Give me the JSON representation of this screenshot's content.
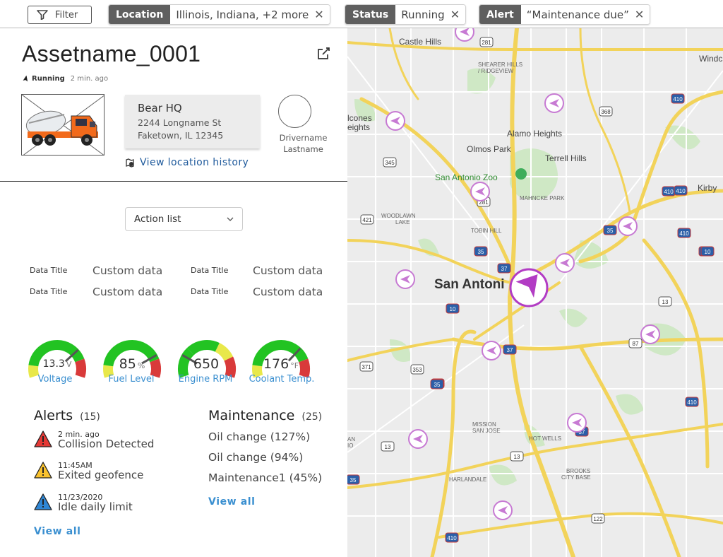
{
  "filters": {
    "filter_label": "Filter",
    "chips": [
      {
        "key": "Location",
        "value": "Illinois, Indiana, +2 more"
      },
      {
        "key": "Status",
        "value": "Running"
      },
      {
        "key": "Alert",
        "value": "“Maintenance due”"
      }
    ],
    "close_symbol": "✕"
  },
  "asset": {
    "name": "Assetname_0001",
    "status": "Running",
    "updated": "2 min. ago"
  },
  "location": {
    "name": "Bear HQ",
    "street": "2244 Longname St",
    "city": "Faketown, IL 12345",
    "history_link": "View location history"
  },
  "driver": {
    "first": "Drivername",
    "last": "Lastname"
  },
  "action_list": {
    "selected": "Action list"
  },
  "data_fields": [
    {
      "title": "Data Title",
      "value": "Custom data"
    },
    {
      "title": "Data Title",
      "value": "Custom data"
    },
    {
      "title": "Data Title",
      "value": "Custom data"
    },
    {
      "title": "Data Title",
      "value": "Custom data"
    }
  ],
  "gauges": [
    {
      "label": "Voltage",
      "value": "13.3",
      "unit": "V",
      "level": 0.72
    },
    {
      "label": "Fuel Level",
      "value": "85",
      "unit": "%",
      "level": 0.78
    },
    {
      "label": "Engine RPM",
      "value": "650",
      "unit": "",
      "level": 0.22
    },
    {
      "label": "Coolant Temp.",
      "value": "176",
      "unit": "°F",
      "level": 0.7
    }
  ],
  "alerts": {
    "title": "Alerts",
    "count": "(15)",
    "items": [
      {
        "time": "2 min. ago",
        "desc": "Collision Detected",
        "color": "#e53935"
      },
      {
        "time": "11:45AM",
        "desc": "Exited geofence",
        "color": "#f9c22e"
      },
      {
        "time": "11/23/2020",
        "desc": "Idle daily limit",
        "color": "#2f86d4"
      }
    ],
    "view_all": "View all"
  },
  "maintenance": {
    "title": "Maintenance",
    "count": "(25)",
    "items": [
      "Oil change (127%)",
      "Oil change (94%)",
      "Maintenance1 (45%)"
    ],
    "view_all": "View all"
  },
  "map": {
    "labels": {
      "castle_hills": "Castle Hills",
      "shearer_hills": "SHEARER HILLS",
      "ridgeview": "/ RIDGEVIEW",
      "alcones": "lcones",
      "eights": "eights",
      "alamo_heights": "Alamo Heights",
      "olmos_park": "Olmos Park",
      "terrell_hills": "Terrell Hills",
      "zoo": "San Antonio Zoo",
      "mahncke": "MAHNCKE PARK",
      "kirby": "Kirby",
      "windc": "Windc",
      "woodlawn": "WOODLAWN",
      "lake": "LAKE",
      "tobin": "TOBIN HILL",
      "san_antonio": "San Antoni",
      "mission": "MISSION",
      "san_jose": "SAN JOSE",
      "hot_wells": "HOT WELLS",
      "harlandale": "HARLANDALE",
      "brooks": "BROOKS",
      "city_base": "CITY BASE",
      "an": "AN",
      "io": "IO"
    },
    "shields": [
      "281",
      "368",
      "410",
      "345",
      "410",
      "281",
      "421",
      "35",
      "410",
      "10",
      "35",
      "37",
      "10",
      "87",
      "13",
      "371",
      "353",
      "35",
      "37",
      "410",
      "13",
      "13",
      "122",
      "410",
      "37",
      "410",
      "35",
      "35",
      "10"
    ]
  },
  "colors": {
    "accent": "#3a8fd0",
    "marker": "#b23cc4",
    "gauge_green": "#22c322",
    "gauge_red": "#d93a3a",
    "gauge_yellow": "#e8e84a"
  }
}
